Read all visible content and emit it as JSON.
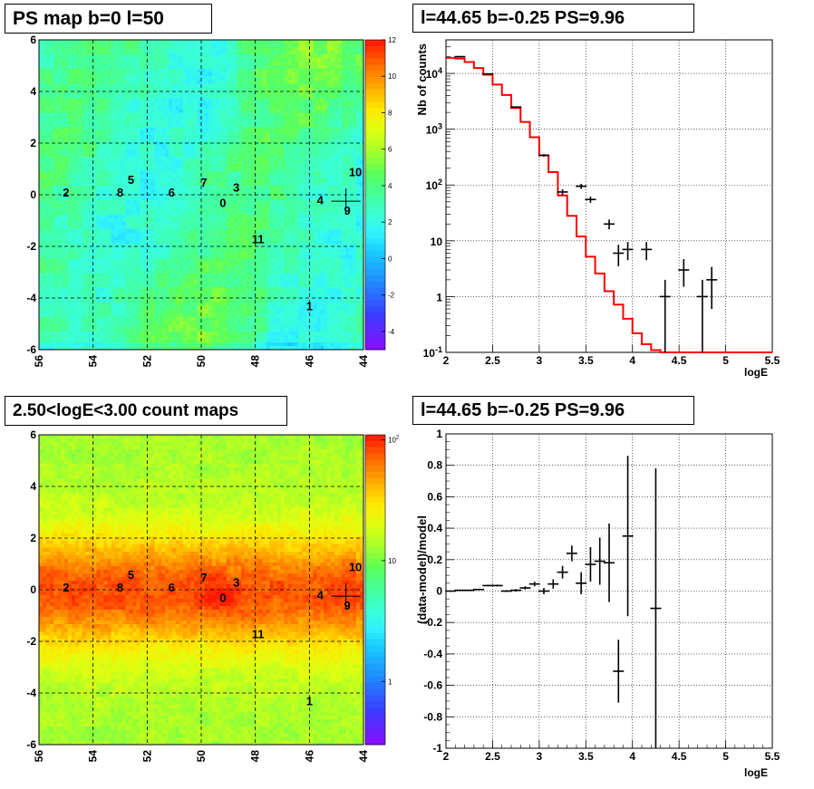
{
  "panels": {
    "ps_map_title": "PS map b=0 l=50",
    "spectrum_title": "l=44.65 b=-0.25 PS=9.96",
    "count_map_title": "2.50<logE<3.00 count maps",
    "residual_title": "l=44.65 b=-0.25 PS=9.96"
  },
  "colors": {
    "model_line": "#ff0000",
    "data_marks": "#000000",
    "grid": "#000000"
  },
  "chart_data": [
    {
      "type": "heatmap",
      "title": "PS map b=0 l=50",
      "x_ticks": [
        "56",
        "54",
        "52",
        "50",
        "48",
        "46",
        "44"
      ],
      "y_ticks": [
        "6",
        "4",
        "2",
        "0",
        "-2",
        "-4",
        "-6"
      ],
      "xlim": [
        56,
        44
      ],
      "ylim": [
        -6,
        6
      ],
      "colorbar_ticks": [
        "12",
        "10",
        "8",
        "6",
        "4",
        "2",
        "0",
        "-2",
        "-4"
      ],
      "colorbar_range": [
        -5,
        12
      ],
      "sources": [
        {
          "label": "0",
          "l": 49.2,
          "b": -0.3
        },
        {
          "label": "1",
          "l": 46.0,
          "b": -4.3
        },
        {
          "label": "2",
          "l": 55.0,
          "b": 0.1
        },
        {
          "label": "3",
          "l": 48.7,
          "b": 0.3
        },
        {
          "label": "4",
          "l": 45.6,
          "b": -0.2
        },
        {
          "label": "5",
          "l": 52.6,
          "b": 0.6
        },
        {
          "label": "6",
          "l": 51.1,
          "b": 0.1
        },
        {
          "label": "7",
          "l": 49.9,
          "b": 0.5
        },
        {
          "label": "8",
          "l": 53.0,
          "b": 0.1
        },
        {
          "label": "9",
          "l": 44.6,
          "b": -0.6
        },
        {
          "label": "10",
          "l": 44.3,
          "b": 0.9
        },
        {
          "label": "11",
          "l": 47.9,
          "b": -1.7
        }
      ],
      "marker": {
        "l": 44.65,
        "b": -0.25
      }
    },
    {
      "type": "line",
      "title": "l=44.65 b=-0.25 PS=9.96",
      "xlabel": "logE",
      "ylabel": "Nb of counts",
      "xlim": [
        2,
        5.5
      ],
      "ylim": [
        0.1,
        40000
      ],
      "ylog": true,
      "x_ticks": [
        "2",
        "2.5",
        "3",
        "3.5",
        "4",
        "4.5",
        "5",
        "5.5"
      ],
      "y_ticks": [
        "10^{-1}",
        "1",
        "10",
        "10^{2}",
        "10^{3}",
        "10^{4}"
      ],
      "model_edges": [
        2.0,
        2.1,
        2.2,
        2.3,
        2.4,
        2.5,
        2.6,
        2.7,
        2.8,
        2.9,
        3.0,
        3.1,
        3.2,
        3.3,
        3.4,
        3.5,
        3.6,
        3.7,
        3.8,
        3.9,
        4.0,
        4.1,
        4.2,
        4.3,
        4.4,
        4.5,
        4.6,
        4.7,
        4.8,
        4.9,
        5.0,
        5.1,
        5.2,
        5.3,
        5.4,
        5.5
      ],
      "model_values": [
        19000,
        18500,
        16000,
        12500,
        9500,
        6300,
        4100,
        2400,
        1350,
        720,
        340,
        170,
        65,
        28,
        12,
        5.2,
        2.6,
        1.25,
        0.72,
        0.4,
        0.22,
        0.14,
        0.11,
        0.1,
        0.1,
        0.1,
        0.1,
        0.1,
        0.1,
        0.1,
        0.1,
        0.1,
        0.1,
        0.1,
        0.1
      ],
      "data_points": [
        {
          "x": 2.15,
          "y": 20000,
          "lo": 19800,
          "hi": 20200
        },
        {
          "x": 2.45,
          "y": 9800,
          "lo": 9700,
          "hi": 9900
        },
        {
          "x": 2.75,
          "y": 2500,
          "lo": 2450,
          "hi": 2550
        },
        {
          "x": 3.05,
          "y": 340,
          "lo": 322,
          "hi": 358
        },
        {
          "x": 3.25,
          "y": 75,
          "lo": 66,
          "hi": 84
        },
        {
          "x": 3.45,
          "y": 95,
          "lo": 85,
          "hi": 105
        },
        {
          "x": 3.55,
          "y": 55,
          "lo": 48,
          "hi": 62
        },
        {
          "x": 3.75,
          "y": 20,
          "lo": 16,
          "hi": 24
        },
        {
          "x": 3.85,
          "y": 6,
          "lo": 3.5,
          "hi": 8.5
        },
        {
          "x": 3.95,
          "y": 7,
          "lo": 4.5,
          "hi": 9.5
        },
        {
          "x": 4.15,
          "y": 7,
          "lo": 4.5,
          "hi": 9.5
        },
        {
          "x": 4.35,
          "y": 1,
          "lo": 0.1,
          "hi": 2
        },
        {
          "x": 4.55,
          "y": 3,
          "lo": 1.5,
          "hi": 4.7
        },
        {
          "x": 4.75,
          "y": 1,
          "lo": 0.1,
          "hi": 2
        },
        {
          "x": 4.85,
          "y": 2,
          "lo": 0.6,
          "hi": 3.4
        }
      ]
    },
    {
      "type": "heatmap",
      "title": "2.50<logE<3.00 count maps",
      "x_ticks": [
        "56",
        "54",
        "52",
        "50",
        "48",
        "46",
        "44"
      ],
      "y_ticks": [
        "6",
        "4",
        "2",
        "0",
        "-2",
        "-4",
        "-6"
      ],
      "xlim": [
        56,
        44
      ],
      "ylim": [
        -6,
        6
      ],
      "colorbar_ticks": [
        "10^{2}",
        "10",
        "1"
      ],
      "colorbar_log": true,
      "sources": [
        {
          "label": "0",
          "l": 49.2,
          "b": -0.3
        },
        {
          "label": "1",
          "l": 46.0,
          "b": -4.3
        },
        {
          "label": "2",
          "l": 55.0,
          "b": 0.1
        },
        {
          "label": "3",
          "l": 48.7,
          "b": 0.3
        },
        {
          "label": "4",
          "l": 45.6,
          "b": -0.2
        },
        {
          "label": "5",
          "l": 52.6,
          "b": 0.6
        },
        {
          "label": "6",
          "l": 51.1,
          "b": 0.1
        },
        {
          "label": "7",
          "l": 49.9,
          "b": 0.5
        },
        {
          "label": "8",
          "l": 53.0,
          "b": 0.1
        },
        {
          "label": "9",
          "l": 44.6,
          "b": -0.6
        },
        {
          "label": "10",
          "l": 44.3,
          "b": 0.9
        },
        {
          "label": "11",
          "l": 47.9,
          "b": -1.7
        }
      ],
      "marker": {
        "l": 44.65,
        "b": -0.25
      }
    },
    {
      "type": "scatter",
      "title": "l=44.65 b=-0.25 PS=9.96",
      "xlabel": "logE",
      "ylabel": "(data-model)/model",
      "xlim": [
        2,
        5.5
      ],
      "ylim": [
        -1,
        1
      ],
      "x_ticks": [
        "2",
        "2.5",
        "3",
        "3.5",
        "4",
        "4.5",
        "5",
        "5.5"
      ],
      "y_ticks": [
        "-1",
        "-0.8",
        "-0.6",
        "-0.4",
        "-0.2",
        "0",
        "0.2",
        "0.4",
        "0.6",
        "0.8",
        "1"
      ],
      "points": [
        {
          "x": 2.05,
          "y": 0.0,
          "e": 0.004
        },
        {
          "x": 2.15,
          "y": 0.005,
          "e": 0.004
        },
        {
          "x": 2.25,
          "y": 0.005,
          "e": 0.004
        },
        {
          "x": 2.35,
          "y": 0.01,
          "e": 0.004
        },
        {
          "x": 2.45,
          "y": 0.035,
          "e": 0.005
        },
        {
          "x": 2.55,
          "y": 0.035,
          "e": 0.006
        },
        {
          "x": 2.65,
          "y": 0.0,
          "e": 0.006
        },
        {
          "x": 2.75,
          "y": 0.005,
          "e": 0.008
        },
        {
          "x": 2.85,
          "y": 0.02,
          "e": 0.01
        },
        {
          "x": 2.95,
          "y": 0.045,
          "e": 0.015
        },
        {
          "x": 3.05,
          "y": 0.0,
          "e": 0.02
        },
        {
          "x": 3.15,
          "y": 0.045,
          "e": 0.03
        },
        {
          "x": 3.25,
          "y": 0.12,
          "e": 0.04
        },
        {
          "x": 3.35,
          "y": 0.24,
          "e": 0.05
        },
        {
          "x": 3.45,
          "y": 0.05,
          "e": 0.07
        },
        {
          "x": 3.55,
          "y": 0.17,
          "e": 0.11
        },
        {
          "x": 3.65,
          "y": 0.19,
          "e": 0.15
        },
        {
          "x": 3.75,
          "y": 0.18,
          "e": 0.25
        },
        {
          "x": 3.85,
          "y": -0.51,
          "e": 0.2
        },
        {
          "x": 3.95,
          "y": 0.35,
          "e": 0.51
        },
        {
          "x": 4.25,
          "y": -0.11,
          "e": 0.89
        }
      ]
    }
  ]
}
